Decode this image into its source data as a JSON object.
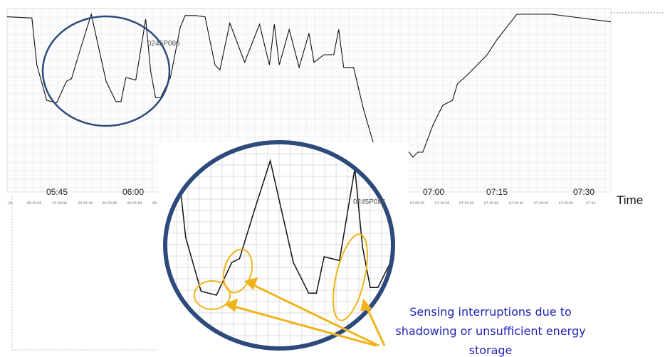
{
  "chart_data": {
    "type": "line",
    "title": "",
    "xlabel": "Time",
    "ylabel": "",
    "grid": true,
    "major_tick_labels": [
      "05:45",
      "06:00",
      "07:00",
      "07:15",
      "07:30"
    ],
    "minor_tick_labels": [
      ":00",
      "05:45:00",
      "05:50:00",
      "05:55:00",
      "06:00:00",
      "06:05:00",
      "06:1",
      "7:00:00",
      "07:05:00",
      "07:10:00",
      "07:15:00",
      "07:20:00",
      "07:25:00",
      "07:30:00",
      "07:35:00",
      "07:40"
    ],
    "series_label": "0245P086",
    "inset_label": "0245P086",
    "series": [
      {
        "x": [
          "05:36",
          "05:41",
          "05:42",
          "05:44",
          "05:46",
          "05:48",
          "05:49",
          "05:51",
          "05:53",
          "05:56",
          "05:58",
          "05:59",
          "06:00",
          "06:02",
          "06:04",
          "06:05",
          "06:06",
          "06:07",
          "06:09",
          "06:11",
          "06:12",
          "06:14",
          "06:16",
          "06:18",
          "06:19",
          "06:21",
          "06:24",
          "06:27",
          "06:29",
          "06:30",
          "06:31",
          "06:33",
          "06:35",
          "06:37",
          "06:38",
          "06:40",
          "06:42",
          "06:43",
          "06:44",
          "06:46",
          "06:48",
          "06:51",
          "06:52",
          "06:53",
          "06:55",
          "06:57",
          "06:58",
          "06:59",
          "07:00",
          "07:02",
          "07:04",
          "07:06",
          "07:07",
          "07:09",
          "07:11",
          "07:13",
          "07:15",
          "07:17",
          "07:19",
          "07:21",
          "07:23",
          "07:25",
          "07:26",
          "07:38"
        ],
        "y": [
          98,
          97,
          60,
          32,
          30,
          47,
          49,
          75,
          100,
          47,
          31,
          31,
          50,
          48,
          96,
          55,
          34,
          34,
          50,
          90,
          99,
          99,
          98,
          60,
          56,
          93,
          62,
          92,
          60,
          92,
          60,
          88,
          58,
          85,
          62,
          68,
          68,
          88,
          58,
          58,
          25,
          -15,
          -23,
          -17,
          -18,
          -8,
          -13,
          -9,
          -9,
          12,
          28,
          32,
          45,
          52,
          60,
          68,
          80,
          90,
          100,
          100,
          100,
          100,
          100,
          94
        ]
      }
    ]
  },
  "annotation": {
    "caption_lines": [
      "Sensing interruptions due to",
      "shadowing or unsufficient energy",
      "storage"
    ],
    "colors": {
      "ellipse": "#2d4a7c",
      "highlight": "#f0b419",
      "caption": "#1f1fb8",
      "line": "#111111",
      "grid": "#e2e2e2"
    }
  }
}
